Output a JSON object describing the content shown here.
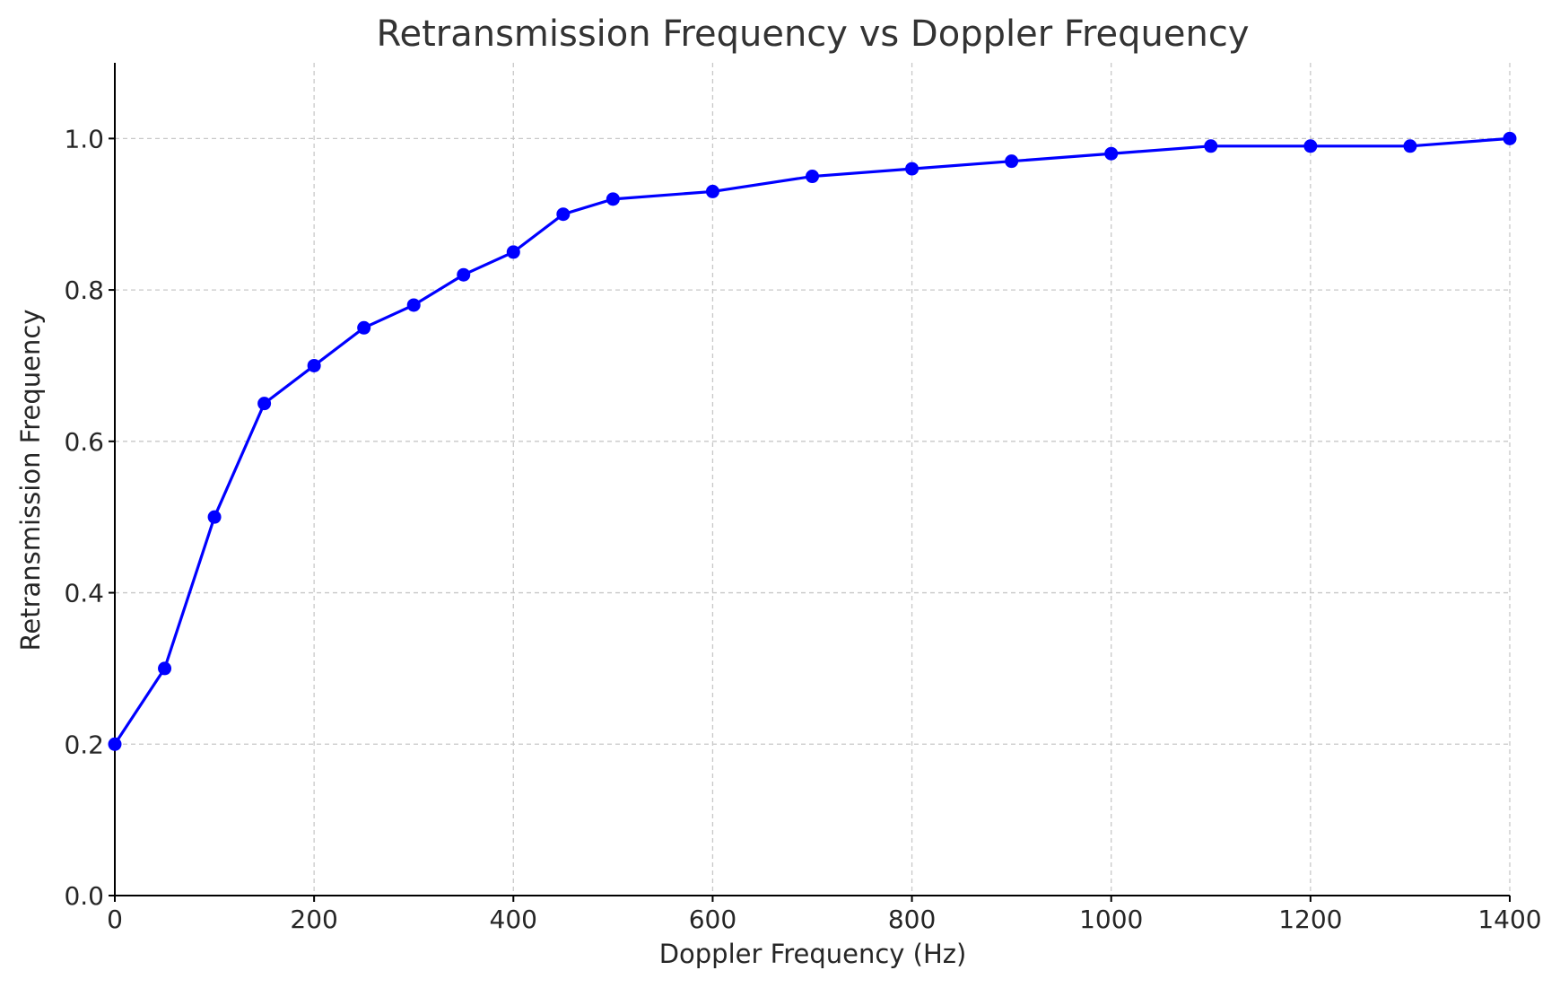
{
  "chart_data": {
    "type": "line",
    "title": "Retransmission Frequency vs Doppler Frequency",
    "xlabel": "Doppler Frequency (Hz)",
    "ylabel": "Retransmission Frequency",
    "xlim": [
      0,
      1400
    ],
    "ylim": [
      0,
      1.1
    ],
    "x_ticks": [
      0,
      200,
      400,
      600,
      800,
      1000,
      1200,
      1400
    ],
    "x_tick_labels": [
      "0",
      "200",
      "400",
      "600",
      "800",
      "1000",
      "1200",
      "1400"
    ],
    "y_ticks": [
      0,
      0.2,
      0.4,
      0.6,
      0.8,
      1.0
    ],
    "y_tick_labels": [
      "0.0",
      "0.2",
      "0.4",
      "0.6",
      "0.8",
      "1.0"
    ],
    "grid": true,
    "series": [
      {
        "color": "#0000ff",
        "marker": "circle",
        "x": [
          0,
          50,
          100,
          150,
          200,
          250,
          300,
          350,
          400,
          450,
          500,
          600,
          700,
          800,
          900,
          1000,
          1100,
          1200,
          1300,
          1400
        ],
        "y": [
          0.2,
          0.3,
          0.5,
          0.65,
          0.7,
          0.75,
          0.78,
          0.82,
          0.85,
          0.9,
          0.92,
          0.93,
          0.95,
          0.96,
          0.97,
          0.98,
          0.99,
          0.99,
          0.99,
          1.0
        ]
      }
    ]
  }
}
